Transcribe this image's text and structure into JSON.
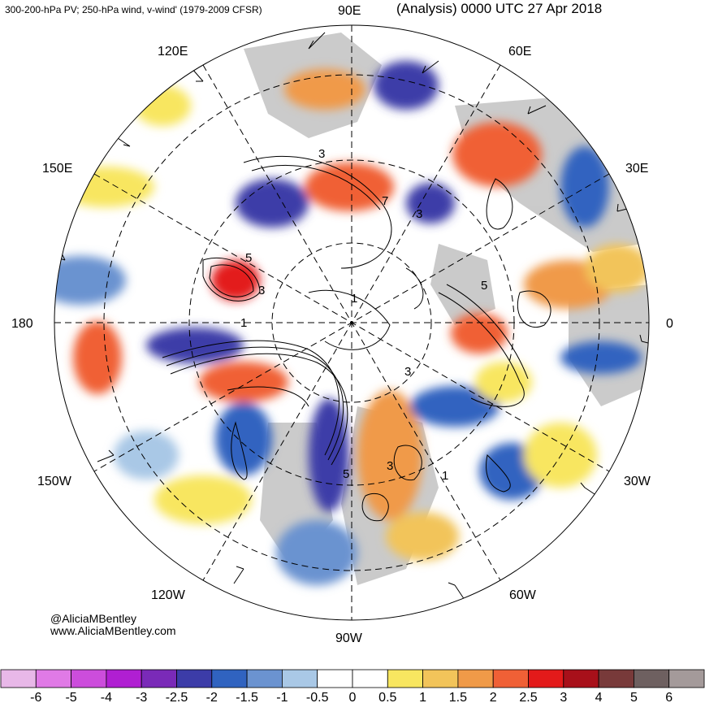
{
  "header": {
    "left_title": "300-200-hPa PV; 250-hPa wind, v-wind' (1979-2009 CFSR)",
    "right_title": "(Analysis) 0000 UTC 27 Apr 2018"
  },
  "meridian_labels": {
    "e90": "90E",
    "e120": "120E",
    "e60": "60E",
    "e150": "150E",
    "e30": "30E",
    "d180": "180",
    "d0": "0",
    "w150": "150W",
    "w30": "30W",
    "w120": "120W",
    "w60": "60W",
    "w90": "90W"
  },
  "contour_labels": {
    "a": "3",
    "b": "7",
    "c": "3",
    "d": "5",
    "e": "3",
    "f": "1",
    "g": "5",
    "h": "3",
    "i": "1",
    "j": "5",
    "k": "3",
    "l": "1"
  },
  "credit": {
    "handle": "@AliciaMBentley",
    "website": "www.AliciaMBentley.com"
  },
  "colorbar": {
    "colors": [
      "#e8b8e8",
      "#e07ae6",
      "#cc4ddc",
      "#b01fd2",
      "#7a2ab8",
      "#3c3ca8",
      "#3063c0",
      "#6b93d0",
      "#a9c8e6",
      "#ffffff",
      "#ffffff",
      "#f8e660",
      "#f2c45a",
      "#f09a48",
      "#f06036",
      "#e31a1a",
      "#a8101a",
      "#783a3a",
      "#6e6060",
      "#a49a9a"
    ],
    "labels": [
      "-6",
      "-5",
      "-4",
      "-3",
      "-2.5",
      "-2",
      "-1.5",
      "-1",
      "-0.5",
      "0",
      "0.5",
      "1",
      "1.5",
      "2",
      "2.5",
      "3",
      "4",
      "5",
      "6"
    ]
  }
}
